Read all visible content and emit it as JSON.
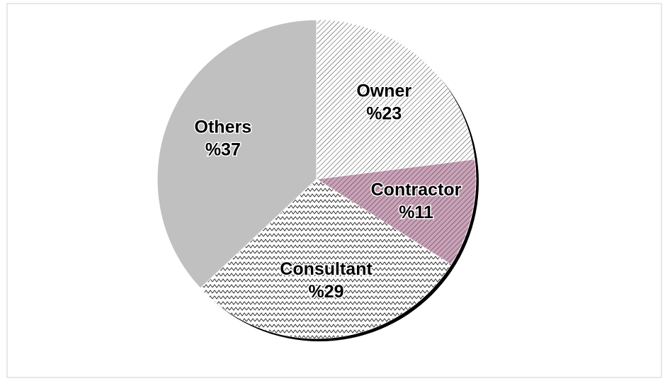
{
  "chart_data": {
    "type": "pie",
    "categories": [
      "Owner",
      "Contractor",
      "Consultant",
      "Others"
    ],
    "values": [
      23,
      11,
      29,
      37
    ],
    "value_labels": [
      "%23",
      "%11",
      "%29",
      "%37"
    ],
    "colors": [
      "#ffffff",
      "#c8a4b8",
      "#ffffff",
      "#c0c0c0"
    ]
  }
}
